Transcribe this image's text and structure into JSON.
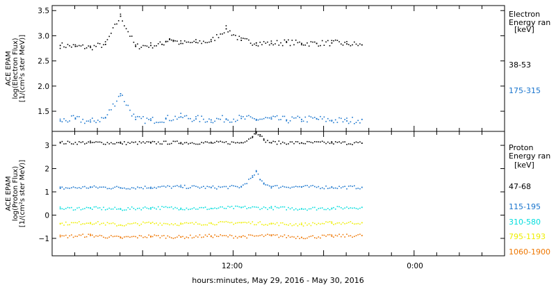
{
  "xlabel": "hours:minutes, May 29, 2016 - May 30, 2016",
  "x_tick_labels": [
    "12:00",
    "0:00"
  ],
  "chart_data": [
    {
      "type": "scatter",
      "ylabel_lines": [
        "ACE EPAM",
        "log(Electron Flux)",
        "[1/(cm²s ster MeV)]"
      ],
      "ylim": [
        1.1,
        3.6
      ],
      "yticks": [
        1.5,
        2.0,
        2.5,
        3.0,
        3.5
      ],
      "ytick_labels": [
        "1.5",
        "2.0",
        "2.5",
        "3.0",
        "3.5"
      ],
      "legend_title": [
        "Electron",
        "Energy ran"
      ],
      "legend_unit": "[keV]",
      "grid": false,
      "series": [
        {
          "name": "38-53",
          "color": "#000000",
          "x": [
            1.0,
            3.0,
            5.0,
            7.0,
            9.0,
            11.0,
            13.0,
            14.5,
            15.0,
            15.5,
            16.0,
            17.0,
            19.0,
            21.0,
            23.0,
            25.0,
            27.0,
            29.0,
            31.0,
            33.0,
            35.0,
            37.0,
            39.0,
            41.0
          ],
          "y": [
            2.82,
            2.8,
            2.78,
            2.84,
            3.4,
            2.8,
            2.82,
            2.84,
            2.9,
            2.95,
            2.92,
            2.86,
            2.88,
            2.9,
            3.15,
            2.92,
            2.87,
            2.86,
            2.88,
            2.86,
            2.86,
            2.87,
            2.85,
            2.83
          ]
        },
        {
          "name": "175-315",
          "color": "#1874cd",
          "x": [
            1.0,
            3.0,
            5.0,
            7.0,
            9.0,
            11.0,
            13.0,
            15.0,
            17.0,
            19.0,
            21.0,
            23.0,
            25.0,
            27.0,
            29.0,
            31.0,
            33.0,
            35.0,
            37.0,
            39.0,
            41.0
          ],
          "y": [
            1.32,
            1.36,
            1.3,
            1.38,
            1.86,
            1.35,
            1.33,
            1.36,
            1.4,
            1.36,
            1.34,
            1.36,
            1.37,
            1.35,
            1.36,
            1.34,
            1.35,
            1.36,
            1.33,
            1.32,
            1.35
          ]
        }
      ]
    },
    {
      "type": "scatter",
      "ylabel_lines": [
        "ACE EPAM",
        "log(Proton Flux)",
        "[1/(cm²s ster MeV)]"
      ],
      "ylim": [
        -1.75,
        3.6
      ],
      "yticks": [
        -1,
        0,
        1,
        2,
        3
      ],
      "ytick_labels": [
        "−1",
        "0",
        "1",
        "2",
        "3"
      ],
      "legend_title": [
        "Proton",
        "Energy ran"
      ],
      "legend_unit": "[keV]",
      "grid": false,
      "series": [
        {
          "name": "47-68",
          "color": "#000000",
          "x": [
            1.0,
            5.0,
            9.0,
            13.0,
            17.0,
            21.0,
            25.0,
            26.5,
            27.0,
            27.5,
            28.0,
            29.0,
            33.0,
            37.0,
            41.0
          ],
          "y": [
            3.13,
            3.14,
            3.12,
            3.13,
            3.14,
            3.13,
            3.14,
            3.4,
            3.6,
            3.48,
            3.25,
            3.14,
            3.13,
            3.13,
            3.12
          ]
        },
        {
          "name": "115-195",
          "color": "#1874cd",
          "x": [
            1.0,
            5.0,
            9.0,
            13.0,
            17.0,
            21.0,
            25.0,
            26.5,
            27.0,
            27.5,
            28.0,
            29.0,
            33.0,
            37.0,
            41.0
          ],
          "y": [
            1.18,
            1.22,
            1.2,
            1.22,
            1.24,
            1.21,
            1.24,
            1.65,
            1.9,
            1.55,
            1.4,
            1.25,
            1.24,
            1.22,
            1.22
          ]
        },
        {
          "name": "310-580",
          "color": "#00dddd",
          "x": [
            1.0,
            5.0,
            9.0,
            13.0,
            17.0,
            21.0,
            25.0,
            29.0,
            33.0,
            37.0,
            41.0
          ],
          "y": [
            0.3,
            0.32,
            0.28,
            0.34,
            0.32,
            0.31,
            0.35,
            0.33,
            0.3,
            0.32,
            0.36
          ]
        },
        {
          "name": "795-1193",
          "color": "#eeee00",
          "x": [
            1.0,
            5.0,
            9.0,
            13.0,
            17.0,
            21.0,
            25.0,
            29.0,
            33.0,
            37.0,
            41.0
          ],
          "y": [
            -0.35,
            -0.3,
            -0.4,
            -0.32,
            -0.36,
            -0.33,
            -0.3,
            -0.35,
            -0.38,
            -0.32,
            -0.3
          ]
        },
        {
          "name": "1060-1900",
          "color": "#ee7600",
          "x": [
            1.0,
            5.0,
            9.0,
            13.0,
            17.0,
            21.0,
            25.0,
            29.0,
            33.0,
            37.0,
            41.0
          ],
          "y": [
            -0.9,
            -0.85,
            -0.95,
            -0.88,
            -0.92,
            -0.87,
            -0.9,
            -0.86,
            -0.93,
            -0.88,
            -0.85
          ]
        }
      ]
    }
  ]
}
